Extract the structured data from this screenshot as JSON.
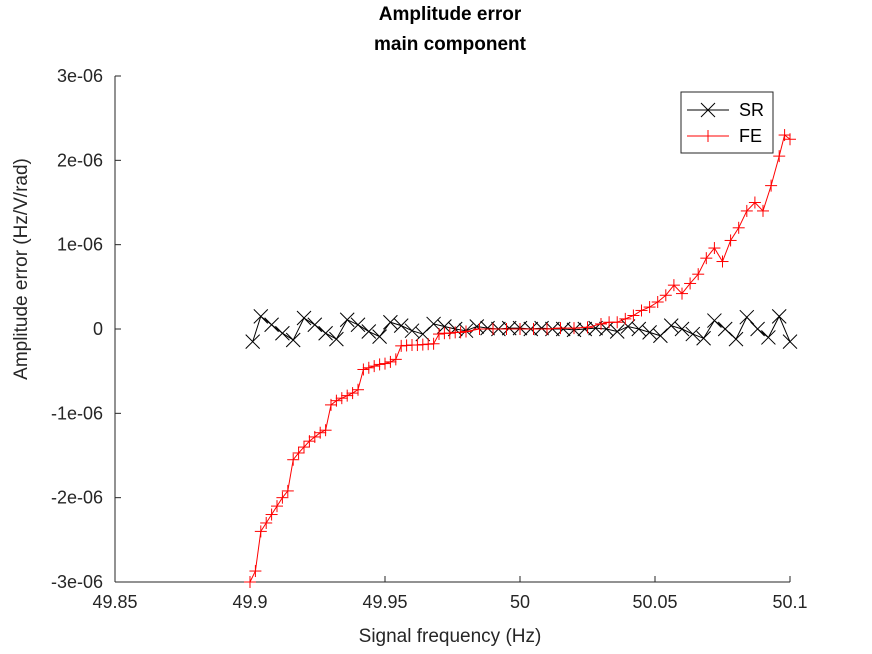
{
  "chart_data": {
    "type": "line",
    "title": "Amplitude error",
    "subtitle": "main component",
    "xlabel": "Signal frequency (Hz)",
    "ylabel": "Amplitude error (Hz/V/rad)",
    "xlim": [
      49.85,
      50.1
    ],
    "ylim": [
      -3e-06,
      3e-06
    ],
    "x_ticks": [
      "49.85",
      "49.9",
      "49.95",
      "50",
      "50.05",
      "50.1"
    ],
    "y_ticks": [
      "-3e-06",
      "-2e-06",
      "-1e-06",
      "0",
      "1e-06",
      "2e-06",
      "3e-06"
    ],
    "legend_position": "top-right",
    "grid": false,
    "series": [
      {
        "name": "SR",
        "color": "#000000",
        "marker": "x",
        "x": [
          49.901,
          49.904,
          49.908,
          49.912,
          49.916,
          49.92,
          49.924,
          49.928,
          49.932,
          49.936,
          49.94,
          49.944,
          49.948,
          49.952,
          49.956,
          49.96,
          49.964,
          49.968,
          49.972,
          49.976,
          49.98,
          49.984,
          49.988,
          49.992,
          49.996,
          50.0,
          50.004,
          50.008,
          50.012,
          50.016,
          50.02,
          50.024,
          50.028,
          50.032,
          50.036,
          50.04,
          50.044,
          50.048,
          50.052,
          50.056,
          50.06,
          50.064,
          50.068,
          50.072,
          50.076,
          50.08,
          50.084,
          50.088,
          50.092,
          50.096,
          50.1
        ],
        "y": [
          -1.5e-07,
          1.5e-07,
          5e-08,
          -5e-08,
          -1.3e-07,
          1.3e-07,
          5e-08,
          -5e-08,
          -1.2e-07,
          1.1e-07,
          5e-08,
          -3e-08,
          -9e-08,
          8e-08,
          4e-08,
          -2e-08,
          -6e-08,
          6e-08,
          3e-08,
          0,
          -2e-08,
          3e-08,
          1e-08,
          0,
          1e-08,
          1e-08,
          0,
          1e-08,
          0,
          0,
          -1e-08,
          0,
          1e-08,
          0,
          -3e-08,
          3e-08,
          0,
          -4e-08,
          -8e-08,
          4e-08,
          0,
          -6e-08,
          -1.1e-07,
          1e-07,
          0,
          -1.2e-07,
          1.4e-07,
          0,
          -1e-07,
          1.5e-07,
          -1.5e-07
        ]
      },
      {
        "name": "FE",
        "color": "#ff0000",
        "marker": "+",
        "x": [
          49.9,
          49.902,
          49.904,
          49.906,
          49.908,
          49.91,
          49.912,
          49.914,
          49.916,
          49.918,
          49.92,
          49.922,
          49.924,
          49.926,
          49.928,
          49.93,
          49.932,
          49.934,
          49.936,
          49.938,
          49.94,
          49.942,
          49.944,
          49.946,
          49.948,
          49.95,
          49.952,
          49.954,
          49.956,
          49.958,
          49.96,
          49.962,
          49.964,
          49.966,
          49.968,
          49.97,
          49.972,
          49.974,
          49.976,
          49.978,
          49.98,
          49.985,
          49.99,
          49.995,
          50.0,
          50.005,
          50.01,
          50.015,
          50.02,
          50.025,
          50.03,
          50.033,
          50.036,
          50.039,
          50.042,
          50.045,
          50.048,
          50.051,
          50.054,
          50.057,
          50.06,
          50.063,
          50.066,
          50.069,
          50.072,
          50.075,
          50.078,
          50.081,
          50.084,
          50.087,
          50.09,
          50.093,
          50.096,
          50.098,
          50.1
        ],
        "y": [
          -3e-06,
          -2.87e-06,
          -2.4e-06,
          -2.3e-06,
          -2.2e-06,
          -2.1e-06,
          -2e-06,
          -1.92e-06,
          -1.55e-06,
          -1.47e-06,
          -1.4e-06,
          -1.33e-06,
          -1.28e-06,
          -1.23e-06,
          -1.2e-06,
          -9e-07,
          -8.5e-07,
          -8.2e-07,
          -7.9e-07,
          -7.6e-07,
          -7.2e-07,
          -4.8e-07,
          -4.6e-07,
          -4.4e-07,
          -4.2e-07,
          -4.1e-07,
          -3.9e-07,
          -3.6e-07,
          -2e-07,
          -1.95e-07,
          -1.9e-07,
          -1.9e-07,
          -1.85e-07,
          -1.8e-07,
          -1.75e-07,
          -6e-08,
          -5e-08,
          -5e-08,
          -4e-08,
          -4e-08,
          -3e-08,
          0,
          0,
          0,
          0,
          0,
          0,
          1e-08,
          1e-08,
          2e-08,
          6e-08,
          8e-08,
          8e-08,
          1.2e-07,
          1.6e-07,
          2.2e-07,
          2.6e-07,
          3.2e-07,
          4e-07,
          5.2e-07,
          4.2e-07,
          5.4e-07,
          6.5e-07,
          8.4e-07,
          9.6e-07,
          8e-07,
          1.05e-06,
          1.2e-06,
          1.4e-06,
          1.5e-06,
          1.4e-06,
          1.7e-06,
          2.05e-06,
          2.3e-06,
          2.25e-06
        ]
      }
    ]
  }
}
